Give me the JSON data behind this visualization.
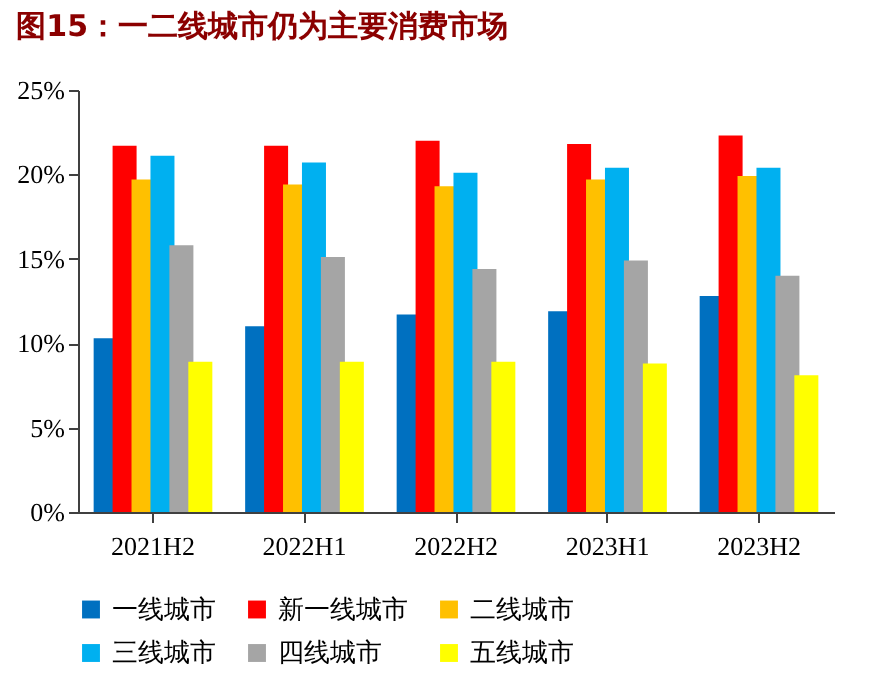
{
  "chart_data": {
    "type": "bar",
    "title": "图15：一二线城市仍为主要消费市场",
    "categories": [
      "2021H2",
      "2022H1",
      "2022H2",
      "2023H1",
      "2023H2"
    ],
    "series": [
      {
        "name": "一线城市",
        "color": "#0070c0",
        "values": [
          10.3,
          11.0,
          11.7,
          11.9,
          12.8
        ]
      },
      {
        "name": "新一线城市",
        "color": "#ff0000",
        "values": [
          21.7,
          21.7,
          22.0,
          21.8,
          22.3
        ]
      },
      {
        "name": "二线城市",
        "color": "#ffc000",
        "values": [
          19.7,
          19.4,
          19.3,
          19.7,
          19.9
        ]
      },
      {
        "name": "三线城市",
        "color": "#00b0f0",
        "values": [
          21.1,
          20.7,
          20.1,
          20.4,
          20.4
        ]
      },
      {
        "name": "四线城市",
        "color": "#a5a5a5",
        "values": [
          15.8,
          15.1,
          14.4,
          14.9,
          14.0
        ]
      },
      {
        "name": "五线城市",
        "color": "#ffff00",
        "values": [
          8.9,
          8.9,
          8.9,
          8.8,
          8.1
        ]
      }
    ],
    "ylim": [
      0,
      25
    ],
    "yticks": [
      {
        "value": 0,
        "label": "0%"
      },
      {
        "value": 5,
        "label": "5%"
      },
      {
        "value": 10,
        "label": "10%"
      },
      {
        "value": 15,
        "label": "15%"
      },
      {
        "value": 20,
        "label": "20%"
      },
      {
        "value": 25,
        "label": "25%"
      }
    ],
    "grid": false,
    "legend": "bottom"
  }
}
